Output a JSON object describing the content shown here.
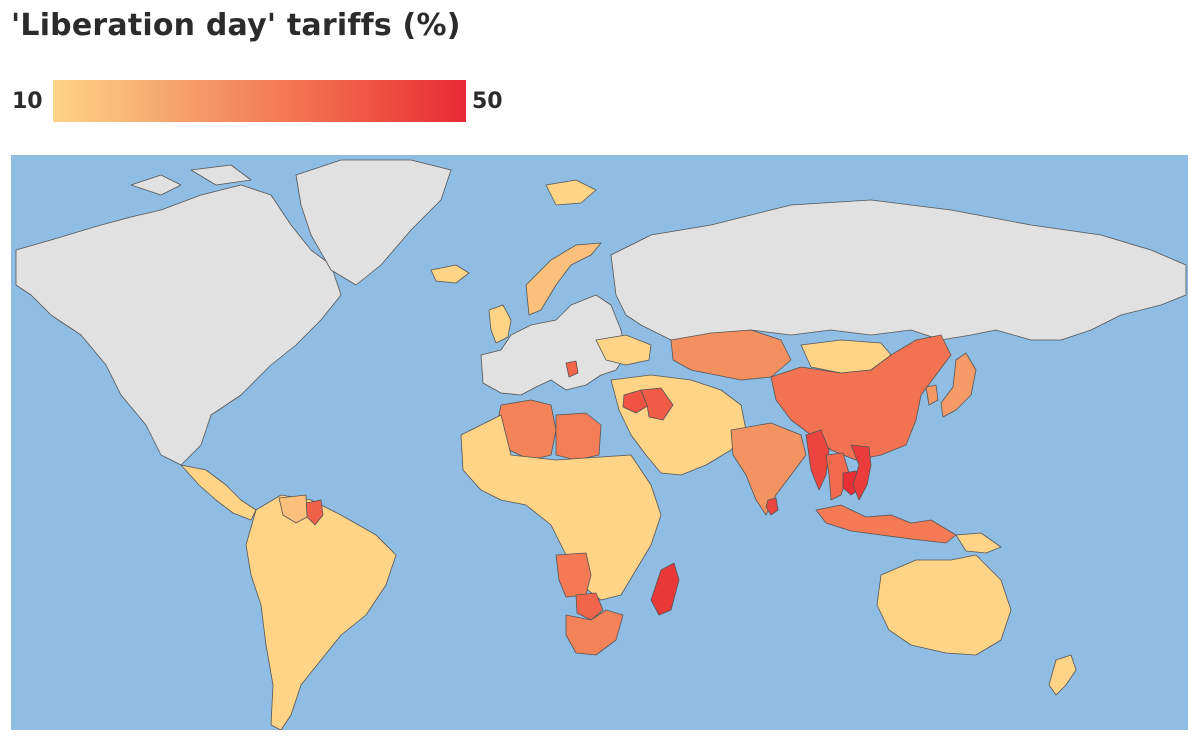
{
  "title": "'Liberation day' tariffs (%)",
  "legend": {
    "min_label": "10",
    "max_label": "50",
    "min_value": 10,
    "max_value": 50,
    "colors": [
      "#ffd487",
      "#f5a36b",
      "#f36f4f",
      "#e82a34"
    ]
  },
  "map": {
    "ocean_color": "#8fbde3",
    "no_tariff_color": "#e1e1e1",
    "border_color": "#555555",
    "regions": [
      {
        "name": "North America",
        "tariff": null
      },
      {
        "name": "Greenland",
        "tariff": null
      },
      {
        "name": "Central America",
        "tariff": 10
      },
      {
        "name": "South America",
        "tariff": 10
      },
      {
        "name": "Guyana",
        "tariff": 38
      },
      {
        "name": "Venezuela",
        "tariff": 15
      },
      {
        "name": "Svalbard",
        "tariff": 10
      },
      {
        "name": "Iceland",
        "tariff": 10
      },
      {
        "name": "Norway",
        "tariff": 15
      },
      {
        "name": "Europe",
        "tariff": null
      },
      {
        "name": "United Kingdom",
        "tariff": 10
      },
      {
        "name": "Ukraine",
        "tariff": 10
      },
      {
        "name": "Serbia",
        "tariff": 37
      },
      {
        "name": "Russia",
        "tariff": null
      },
      {
        "name": "Kazakhstan",
        "tariff": 27
      },
      {
        "name": "Mongolia",
        "tariff": 10
      },
      {
        "name": "China",
        "tariff": 34
      },
      {
        "name": "Middle East",
        "tariff": 10
      },
      {
        "name": "Syria",
        "tariff": 41
      },
      {
        "name": "Iraq",
        "tariff": 39
      },
      {
        "name": "Algeria",
        "tariff": 30
      },
      {
        "name": "Libya",
        "tariff": 31
      },
      {
        "name": "West & Central Africa",
        "tariff": 10
      },
      {
        "name": "Angola",
        "tariff": 32
      },
      {
        "name": "Botswana",
        "tariff": 37
      },
      {
        "name": "South Africa",
        "tariff": 30
      },
      {
        "name": "Madagascar",
        "tariff": 47
      },
      {
        "name": "India",
        "tariff": 26
      },
      {
        "name": "Sri Lanka",
        "tariff": 44
      },
      {
        "name": "Myanmar",
        "tariff": 44
      },
      {
        "name": "Thailand",
        "tariff": 36
      },
      {
        "name": "Cambodia",
        "tariff": 49
      },
      {
        "name": "Vietnam",
        "tariff": 46
      },
      {
        "name": "Japan",
        "tariff": 24
      },
      {
        "name": "South Korea",
        "tariff": 25
      },
      {
        "name": "Indonesia",
        "tariff": 32
      },
      {
        "name": "Papua New Guinea",
        "tariff": 10
      },
      {
        "name": "Australia",
        "tariff": 10
      },
      {
        "name": "New Zealand",
        "tariff": 10
      }
    ]
  }
}
